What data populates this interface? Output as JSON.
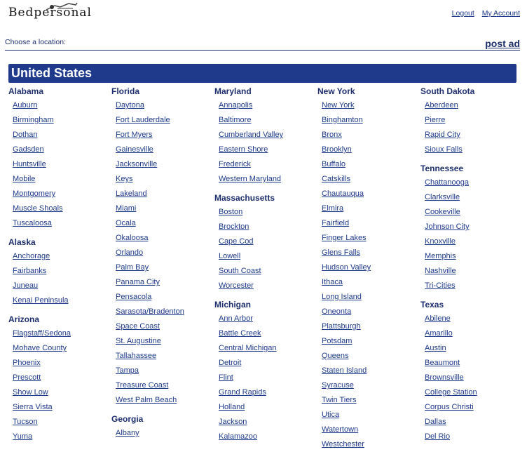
{
  "header": {
    "logo_text": "Bedpersonal",
    "logout": "Logout",
    "my_account": "My Account"
  },
  "choose_label": "Choose a location:",
  "post_ad": "post ad",
  "country": "United States",
  "columns": [
    [
      {
        "state": "Alabama",
        "cities": [
          "Auburn",
          "Birmingham",
          "Dothan",
          "Gadsden",
          "Huntsville",
          "Mobile",
          "Montgomery",
          "Muscle Shoals",
          "Tuscaloosa"
        ]
      },
      {
        "state": "Alaska",
        "cities": [
          "Anchorage",
          "Fairbanks",
          "Juneau",
          "Kenai Peninsula"
        ]
      },
      {
        "state": "Arizona",
        "cities": [
          "Flagstaff/Sedona",
          "Mohave County",
          "Phoenix",
          "Prescott",
          "Show Low",
          "Sierra Vista",
          "Tucson",
          "Yuma"
        ]
      }
    ],
    [
      {
        "state": "Florida",
        "cities": [
          "Daytona",
          "Fort Lauderdale",
          "Fort Myers",
          "Gainesville",
          "Jacksonville",
          "Keys",
          "Lakeland",
          "Miami",
          "Ocala",
          "Okaloosa",
          "Orlando",
          "Palm Bay",
          "Panama City",
          "Pensacola",
          "Sarasota/Bradenton",
          "Space Coast",
          "St. Augustine",
          "Tallahassee",
          "Tampa",
          "Treasure Coast",
          "West Palm Beach"
        ]
      },
      {
        "state": "Georgia",
        "cities": [
          "Albany"
        ]
      }
    ],
    [
      {
        "state": "Maryland",
        "cities": [
          "Annapolis",
          "Baltimore",
          "Cumberland Valley",
          "Eastern Shore",
          "Frederick",
          "Western Maryland"
        ]
      },
      {
        "state": "Massachusetts",
        "cities": [
          "Boston",
          "Brockton",
          "Cape Cod",
          "Lowell",
          "South Coast",
          "Worcester"
        ]
      },
      {
        "state": "Michigan",
        "cities": [
          "Ann Arbor",
          "Battle Creek",
          "Central Michigan",
          "Detroit",
          "Flint",
          "Grand Rapids",
          "Holland",
          "Jackson",
          "Kalamazoo"
        ]
      }
    ],
    [
      {
        "state": "New York",
        "cities": [
          "New York",
          "Binghamton",
          "Bronx",
          "Brooklyn",
          "Buffalo",
          "Catskills",
          "Chautauqua",
          "Elmira",
          "Fairfield",
          "Finger Lakes",
          "Glens Falls",
          "Hudson Valley",
          "Ithaca",
          "Long Island",
          "Oneonta",
          "Plattsburgh",
          "Potsdam",
          "Queens",
          "Staten Island",
          "Syracuse",
          "Twin Tiers",
          "Utica",
          "Watertown",
          "Westchester"
        ]
      }
    ],
    [
      {
        "state": "South Dakota",
        "cities": [
          "Aberdeen",
          "Pierre",
          "Rapid City",
          "Sioux Falls"
        ]
      },
      {
        "state": "Tennessee",
        "cities": [
          "Chattanooga",
          "Clarksville",
          "Cookeville",
          "Johnson City",
          "Knoxville",
          "Memphis",
          "Nashville",
          "Tri-Cities"
        ]
      },
      {
        "state": "Texas",
        "cities": [
          "Abilene",
          "Amarillo",
          "Austin",
          "Beaumont",
          "Brownsville",
          "College Station",
          "Corpus Christi",
          "Dallas",
          "Del Rio"
        ]
      }
    ]
  ]
}
